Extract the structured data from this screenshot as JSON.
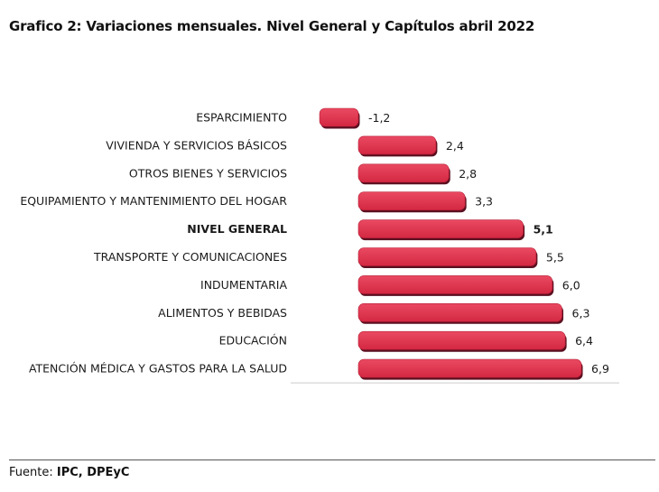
{
  "header": {
    "title": "Grafico 2: Variaciones mensuales.  Nivel General y Capítulos  abril  2022"
  },
  "footer": {
    "source_prefix": "Fuente: ",
    "source_value": "IPC, DPEyC"
  },
  "colors": {
    "bar_fill": "#e0314b",
    "bar_shadow": "#5a1020",
    "axis": "#cccccc"
  },
  "chart_data": {
    "type": "bar",
    "orientation": "horizontal",
    "title": "Grafico 2: Variaciones mensuales.  Nivel General y Capítulos  abril  2022",
    "xlabel": "",
    "ylabel": "",
    "grid": false,
    "xlim": [
      -1.5,
      7.2
    ],
    "categories": [
      "ESPARCIMIENTO",
      "VIVIENDA Y SERVICIOS BÁSICOS",
      "OTROS BIENES Y SERVICIOS",
      "EQUIPAMIENTO Y MANTENIMIENTO DEL HOGAR",
      "NIVEL GENERAL",
      "TRANSPORTE Y COMUNICACIONES",
      "INDUMENTARIA",
      "ALIMENTOS Y BEBIDAS",
      "EDUCACIÓN",
      "ATENCIÓN MÉDICA Y GASTOS PARA LA SALUD"
    ],
    "values": [
      -1.2,
      2.4,
      2.8,
      3.3,
      5.1,
      5.5,
      6.0,
      6.3,
      6.4,
      6.9
    ],
    "value_labels": [
      "-1,2",
      "2,4",
      "2,8",
      "3,3",
      "5,1",
      "5,5",
      "6,0",
      "6,3",
      "6,4",
      "6,9"
    ],
    "highlighted_category": "NIVEL GENERAL"
  }
}
